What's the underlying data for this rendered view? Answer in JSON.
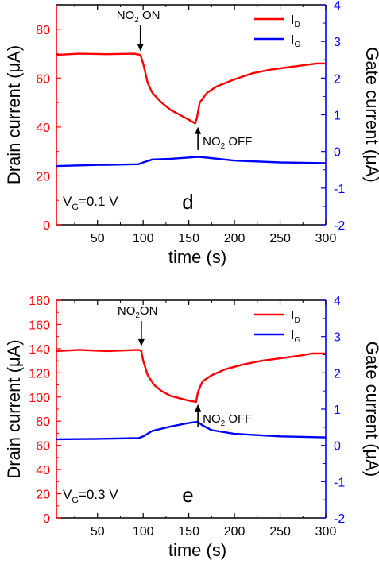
{
  "colors": {
    "left_axis": "#ff0000",
    "right_axis": "#0000ff",
    "text": "#000000",
    "frame": "#000000"
  },
  "chart_data": [
    {
      "type": "line",
      "panel_label": "d",
      "xlabel": "time (s)",
      "ylabel_left": "Drain current (μA)",
      "ylabel_right": "Gate current (μA)",
      "xlim": [
        5,
        300
      ],
      "ylim_left": [
        0,
        90
      ],
      "ylim_right": [
        -2,
        4
      ],
      "xticks": [
        50,
        100,
        150,
        200,
        250,
        300
      ],
      "yticks_left": [
        0,
        20,
        40,
        60,
        80
      ],
      "yticks_right": [
        -2,
        -1,
        0,
        1,
        2,
        3,
        4
      ],
      "grid": false,
      "legend_position": "top-right",
      "condition": {
        "main": "V",
        "sub": "G",
        "rest": "=0.1 V"
      },
      "annotations": [
        {
          "kind": "on",
          "pre": "NO",
          "sub": "2",
          "post": " ON",
          "x": 97,
          "y": 70
        },
        {
          "kind": "off",
          "pre": "NO",
          "sub": "2",
          "post": " OFF",
          "x": 160,
          "y": 41
        }
      ],
      "series": [
        {
          "name_main": "I",
          "name_sub": "D",
          "axis": "left",
          "color": "#ff0000",
          "x": [
            5,
            30,
            60,
            90,
            97,
            100,
            105,
            110,
            120,
            130,
            140,
            150,
            157,
            159,
            162,
            170,
            180,
            200,
            220,
            240,
            260,
            280,
            290,
            300
          ],
          "y": [
            69.5,
            70,
            69.8,
            70,
            69.5,
            66,
            58,
            54,
            50,
            47,
            45,
            43,
            41.5,
            44,
            50,
            54,
            56.5,
            59.5,
            62,
            63.5,
            64.5,
            65.5,
            66,
            66
          ]
        },
        {
          "name_main": "I",
          "name_sub": "G",
          "axis": "right",
          "color": "#0000ff",
          "x": [
            5,
            50,
            95,
            100,
            110,
            130,
            160,
            170,
            200,
            250,
            300
          ],
          "y": [
            -0.4,
            -0.37,
            -0.35,
            -0.3,
            -0.22,
            -0.2,
            -0.15,
            -0.17,
            -0.25,
            -0.3,
            -0.32
          ]
        }
      ]
    },
    {
      "type": "line",
      "panel_label": "e",
      "xlabel": "time (s)",
      "ylabel_left": "Drain current (μA)",
      "ylabel_right": "Gate current (μA)",
      "xlim": [
        5,
        300
      ],
      "ylim_left": [
        0,
        180
      ],
      "ylim_right": [
        -2,
        4
      ],
      "xticks": [
        50,
        100,
        150,
        200,
        250,
        300
      ],
      "yticks_left": [
        0,
        20,
        40,
        60,
        80,
        100,
        120,
        140,
        160,
        180
      ],
      "yticks_right": [
        -2,
        -1,
        0,
        1,
        2,
        3,
        4
      ],
      "grid": false,
      "legend_position": "top-right",
      "condition": {
        "main": "V",
        "sub": "G",
        "rest": "=0.3 V"
      },
      "annotations": [
        {
          "kind": "on",
          "pre": "NO",
          "sub": "2",
          "post": "ON",
          "x": 98,
          "y": 140
        },
        {
          "kind": "off",
          "pre": "NO",
          "sub": "2",
          "post": " OFF",
          "x": 160,
          "y": 96
        }
      ],
      "series": [
        {
          "name_main": "I",
          "name_sub": "D",
          "axis": "left",
          "color": "#ff0000",
          "x": [
            5,
            30,
            60,
            95,
            98,
            100,
            105,
            112,
            120,
            130,
            140,
            150,
            158,
            160,
            165,
            175,
            190,
            210,
            230,
            250,
            270,
            285,
            300
          ],
          "y": [
            138,
            139,
            138,
            139,
            138,
            130,
            118,
            110,
            105,
            101,
            99,
            97,
            96,
            104,
            113,
            118,
            123,
            127,
            130,
            132,
            134,
            136,
            136
          ]
        },
        {
          "name_main": "I",
          "name_sub": "G",
          "axis": "right",
          "color": "#0000ff",
          "x": [
            5,
            50,
            95,
            100,
            110,
            130,
            150,
            160,
            165,
            175,
            200,
            250,
            300
          ],
          "y": [
            0.17,
            0.18,
            0.2,
            0.25,
            0.4,
            0.52,
            0.62,
            0.65,
            0.55,
            0.42,
            0.32,
            0.25,
            0.22
          ]
        }
      ]
    }
  ]
}
